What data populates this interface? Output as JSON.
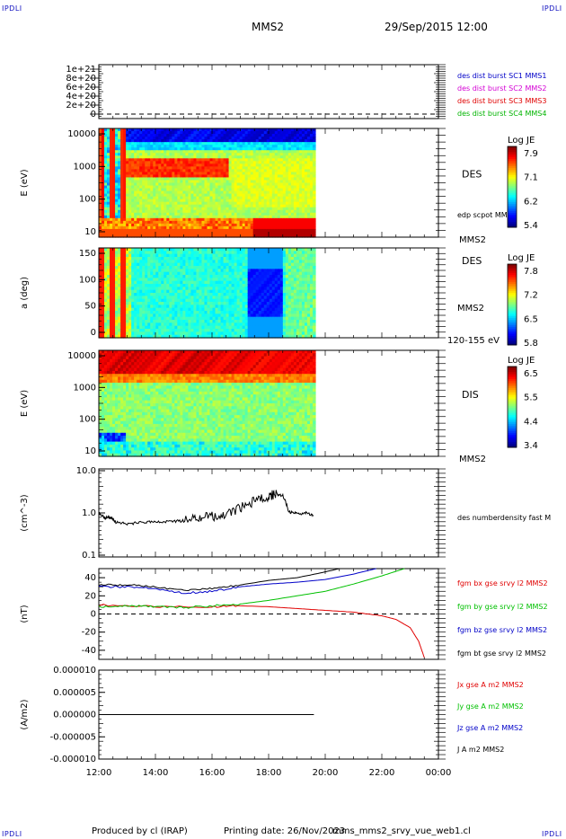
{
  "header": {
    "corner_label": "IPDLI",
    "spacecraft": "MMS2",
    "datetime": "29/Sep/2015 12:00"
  },
  "footer": {
    "produced_by": "Produced by cl (IRAP)",
    "printing_date": "Printing date: 26/Nov/2023",
    "filename": "mms_mms2_srvy_vue_web1.cl"
  },
  "colors": {
    "mms1": "#0000c8",
    "mms2": "#d400d4",
    "mms3": "#e00000",
    "mms4": "#00b400",
    "bx": "#e00000",
    "by": "#00c000",
    "bz": "#0000c8",
    "bt": "#000000"
  },
  "chart_data": [
    {
      "type": "line",
      "id": "burst-panel",
      "yticks": [
        "1e+21",
        "8e+20",
        "6e+20",
        "4e+20",
        "2e+20",
        "0"
      ],
      "ylim": [
        0,
        1e+21
      ],
      "zero_line": "dashed",
      "legend": [
        {
          "label": "des dist burst SC1 MMS1",
          "color": "#0000c8"
        },
        {
          "label": "des dist burst SC2 MMS2",
          "color": "#d400d4"
        },
        {
          "label": "des dist burst SC3 MMS3",
          "color": "#e00000"
        },
        {
          "label": "des dist burst SC4 MMS4",
          "color": "#00b400"
        }
      ]
    },
    {
      "type": "heatmap",
      "id": "des-energy",
      "ylabel": "E (eV)",
      "yscale": "log",
      "yticks": [
        "10000",
        "1000",
        "100",
        "10"
      ],
      "ylim": [
        10,
        20000
      ],
      "instrument": "DES",
      "side_label": "edp scpot MMS2",
      "bottom_label": "MMS2",
      "colorbar": {
        "title": "Log JE",
        "ticks": [
          "7.9",
          "7.1",
          "6.2",
          "5.4"
        ],
        "range": [
          5.4,
          7.9
        ]
      }
    },
    {
      "type": "heatmap",
      "id": "des-pitch",
      "ylabel": "a (deg)",
      "yticks": [
        "150",
        "100",
        "50",
        "0"
      ],
      "ylim": [
        0,
        180
      ],
      "instrument": "DES",
      "side_label": "MMS2",
      "bottom_label": "120-155 eV",
      "colorbar": {
        "title": "Log JE",
        "ticks": [
          "7.8",
          "7.2",
          "6.5",
          "5.8"
        ],
        "range": [
          5.8,
          7.8
        ]
      }
    },
    {
      "type": "heatmap",
      "id": "dis-energy",
      "ylabel": "E (eV)",
      "yscale": "log",
      "yticks": [
        "10000",
        "1000",
        "100",
        "10"
      ],
      "ylim": [
        10,
        20000
      ],
      "instrument": "DIS",
      "bottom_label": "MMS2",
      "colorbar": {
        "title": "Log JE",
        "ticks": [
          "6.5",
          "5.5",
          "4.4",
          "3.4"
        ],
        "range": [
          3.4,
          6.5
        ]
      }
    },
    {
      "type": "line",
      "id": "density",
      "ylabel": "(cm^-3)",
      "yscale": "log",
      "yticks": [
        "10.0",
        "1.0",
        "0.1"
      ],
      "ylim": [
        0.1,
        10
      ],
      "legend": [
        {
          "label": "des numberdensity fast M",
          "color": "#000000"
        }
      ],
      "series": [
        {
          "name": "des numberdensity fast M",
          "x": [
            12.0,
            12.2,
            12.4,
            12.6,
            13.0,
            13.5,
            14.0,
            14.5,
            15.0,
            15.5,
            16.0,
            16.5,
            17.0,
            17.5,
            18.0,
            18.2,
            18.5,
            18.7,
            19.0,
            19.3,
            19.6
          ],
          "y": [
            1.0,
            0.75,
            0.8,
            0.6,
            0.55,
            0.6,
            0.6,
            0.62,
            0.65,
            0.75,
            0.85,
            0.9,
            1.3,
            2.0,
            2.5,
            2.8,
            2.6,
            1.05,
            0.95,
            1.0,
            0.9
          ]
        }
      ]
    },
    {
      "type": "line",
      "id": "fgm",
      "ylabel": "(nT)",
      "yticks": [
        "40",
        "20",
        "0",
        "-20",
        "-40"
      ],
      "ylim": [
        -50,
        50
      ],
      "zero_line": "dashed",
      "legend": [
        {
          "label": "fgm bx gse srvy l2 MMS2",
          "color": "#e00000"
        },
        {
          "label": "fgm by gse srvy l2 MMS2",
          "color": "#00c000"
        },
        {
          "label": "fgm bz gse srvy l2 MMS2",
          "color": "#0000c8"
        },
        {
          "label": "fgm bt gse srvy l2 MMS2",
          "color": "#000000"
        }
      ],
      "series": [
        {
          "name": "fgm bx gse srvy l2 MMS2",
          "color": "#e00000",
          "x": [
            12.0,
            14.0,
            16.0,
            17.0,
            18.0,
            19.0,
            20.0,
            21.0,
            22.0,
            22.5,
            23.0,
            23.3,
            23.5
          ],
          "y": [
            10,
            8,
            8,
            9,
            8,
            6,
            4,
            2,
            -2,
            -6,
            -15,
            -30,
            -48
          ]
        },
        {
          "name": "fgm by gse srvy l2 MMS2",
          "color": "#00c000",
          "x": [
            12.0,
            13.0,
            14.0,
            15.0,
            16.0,
            17.0,
            18.0,
            19.0,
            20.0,
            21.0,
            22.0,
            22.8
          ],
          "y": [
            8,
            9,
            8,
            7,
            9,
            11,
            15,
            20,
            25,
            33,
            42,
            50
          ]
        },
        {
          "name": "fgm bz gse srvy l2 MMS2",
          "color": "#0000c8",
          "x": [
            12.0,
            13.0,
            14.0,
            15.0,
            16.0,
            17.0,
            18.0,
            19.0,
            20.0,
            21.0,
            21.8
          ],
          "y": [
            30,
            30,
            28,
            23,
            25,
            30,
            33,
            35,
            38,
            44,
            50
          ]
        },
        {
          "name": "fgm bt gse srvy l2 MMS2",
          "color": "#000000",
          "x": [
            12.0,
            13.0,
            14.0,
            15.0,
            16.0,
            17.0,
            18.0,
            19.0,
            19.8,
            20.5
          ],
          "y": [
            32,
            32,
            30,
            26,
            28,
            32,
            37,
            40,
            45,
            50
          ]
        }
      ]
    },
    {
      "type": "line",
      "id": "current",
      "ylabel": "(A/m2)",
      "yticks": [
        "0.000010",
        "0.000005",
        "0.000000",
        "-0.000005",
        "-0.000010"
      ],
      "ylim": [
        -1e-05,
        1e-05
      ],
      "legend": [
        {
          "label": "Jx gse A m2 MMS2",
          "color": "#e00000"
        },
        {
          "label": "Jy gse A m2 MMS2",
          "color": "#00c000"
        },
        {
          "label": "Jz gse A m2 MMS2",
          "color": "#0000c8"
        },
        {
          "label": "J A m2 MMS2",
          "color": "#000000"
        }
      ],
      "series": [
        {
          "name": "J A m2 MMS2",
          "color": "#000000",
          "x": [
            12.0,
            19.6
          ],
          "y": [
            0,
            0
          ]
        }
      ],
      "xticks": [
        "12:00",
        "14:00",
        "16:00",
        "18:00",
        "20:00",
        "22:00",
        "00:00"
      ]
    }
  ]
}
